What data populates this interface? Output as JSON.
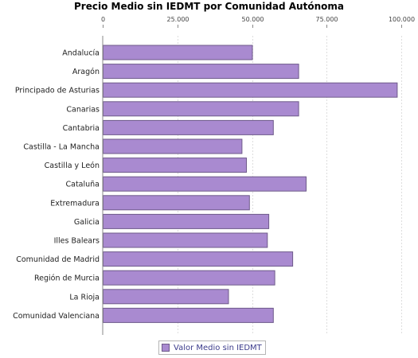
{
  "chart_data": {
    "type": "bar",
    "orientation": "horizontal",
    "title": "Precio Medio sin IEDMT por Comunidad Autónoma",
    "xlabel": "",
    "ylabel": "",
    "categories": [
      "Andalucía",
      "Aragón",
      "Principado de Asturias",
      "Canarias",
      "Cantabria",
      "Castilla - La Mancha",
      "Castilla y León",
      "Cataluña",
      "Extremadura",
      "Galicia",
      "Illes Balears",
      "Comunidad de Madrid",
      "Región de Murcia",
      "La Rioja",
      "Comunidad Valenciana"
    ],
    "series": [
      {
        "name": "Valor Medio sin IEDMT",
        "values": [
          50000,
          65500,
          98500,
          65500,
          57000,
          46500,
          48000,
          68000,
          49000,
          55500,
          55000,
          63500,
          57500,
          42000,
          57000
        ],
        "color": "#a98ad0"
      }
    ],
    "xlim": [
      0,
      100000
    ],
    "ticks": [
      "0",
      "25.000",
      "50.000",
      "75.000",
      "100.000"
    ],
    "tick_values": [
      0,
      25000,
      50000,
      75000,
      100000
    ],
    "grid": true,
    "legend_position": "bottom"
  }
}
